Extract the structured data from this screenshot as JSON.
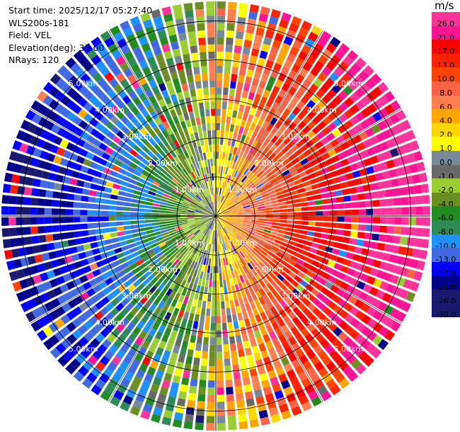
{
  "info": {
    "start_time": "Start time: 2025/12/17 05:27:40",
    "instrument": "WLS200s-181",
    "field": "Field: VEL",
    "elevation": "Elevation(deg): 35.00",
    "nrays": "NRays: 120"
  },
  "colorbar": {
    "unit": "m/s",
    "colors": [
      "#ff3399",
      "#ff1493",
      "#ff0000",
      "#ff2200",
      "#ff4500",
      "#ff6347",
      "#ff7f50",
      "#ffa500",
      "#ffd700",
      "#ffff00",
      "#778899",
      "#696969",
      "#9acd32",
      "#6b8e23",
      "#228b22",
      "#2e8b57",
      "#1e90ff",
      "#4169e1",
      "#0000ff",
      "#00008b",
      "#191970",
      "#191970"
    ],
    "labels": [
      "26.0",
      "21.0",
      "17.0",
      "13.0",
      "10.0",
      "8.0",
      "6.0",
      "4.0",
      "2.0",
      "1.0",
      "0.0",
      "-1.0",
      "-2.0",
      "-4.0",
      "-6.0",
      "-8.0",
      "-10.0",
      "-13.0",
      "-17.0",
      "-21.0",
      "-26.0",
      "-30.0"
    ]
  },
  "chart_data": {
    "type": "heatmap",
    "subtype": "ppi-polar",
    "field": "VEL",
    "unit": "m/s",
    "n_rays": 120,
    "max_range_km": 5.5,
    "range_rings_km": [
      1.0,
      2.0,
      3.0,
      4.0,
      5.0
    ],
    "ring_labels": [
      "1.00km",
      "2.00km",
      "3.00km",
      "4.00km",
      "5.00km"
    ],
    "value_range": [
      -30,
      30
    ],
    "pattern": "east-west dipole: positive velocities (red/pink) on the east side, negative velocities (blue/navy) on the west side, near-zero (yellow/grey/green) near the center"
  }
}
